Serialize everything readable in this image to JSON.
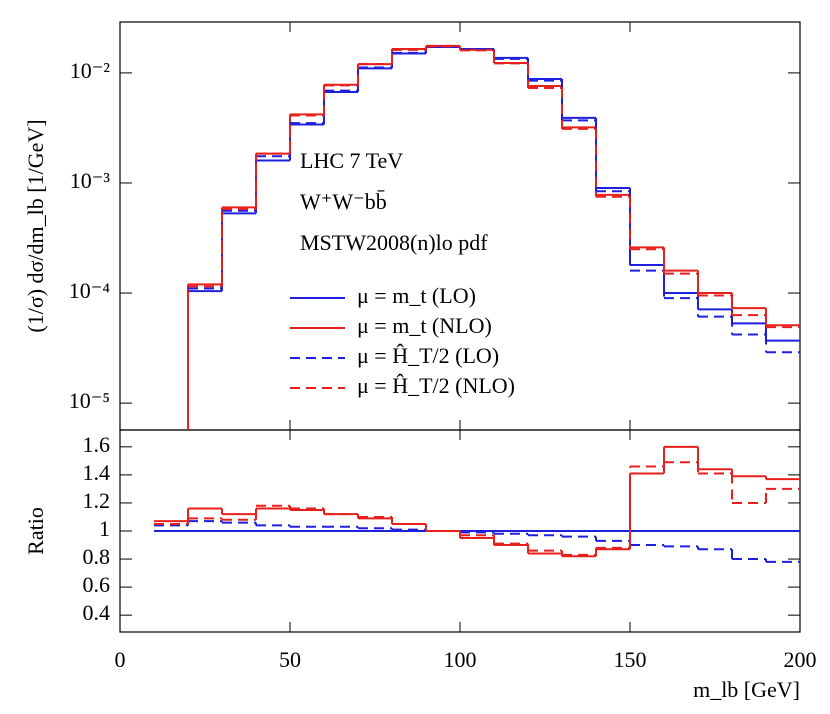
{
  "chart_data": [
    {
      "type": "histogram",
      "ylabel": "(1/σ) dσ/dm_lb [1/GeV]",
      "annotations": [
        "LHC 7 TeV",
        "W⁺W⁻bb̄",
        "MSTW2008(n)lo pdf"
      ],
      "log_y": true,
      "legend": "center",
      "xlim": [
        0,
        200
      ],
      "ylim": [
        5.7e-06,
        0.029
      ],
      "yticks": [
        {
          "value": 1e-05,
          "label": "10⁻⁵"
        },
        {
          "value": 0.0001,
          "label": "10⁻⁴"
        },
        {
          "value": 0.001,
          "label": "10⁻³"
        },
        {
          "value": 0.01,
          "label": "10⁻²"
        }
      ],
      "bins": [
        20,
        30,
        40,
        50,
        60,
        70,
        80,
        90,
        100,
        110,
        120,
        130,
        140,
        150,
        160,
        170,
        180,
        190,
        200
      ],
      "series": [
        {
          "name": "μ = m_t (LO)",
          "color": "#1f1fe0",
          "dashed": false,
          "values": [
            0.000104,
            0.00053,
            0.0016,
            0.0034,
            0.0067,
            0.011,
            0.015,
            0.0172,
            0.0165,
            0.0137,
            0.0088,
            0.0039,
            0.0009,
            0.00018,
            0.0001,
            7.1e-05,
            5.3e-05,
            3.7e-05
          ]
        },
        {
          "name": "μ = m_t (NLO)",
          "color": "#e8201c",
          "dashed": false,
          "values": [
            0.00012,
            0.0006,
            0.00185,
            0.0042,
            0.0078,
            0.012,
            0.0165,
            0.0176,
            0.0162,
            0.0123,
            0.0076,
            0.0032,
            0.00078,
            0.00026,
            0.00016,
            0.0001,
            7.3e-05,
            5.1e-05
          ]
        },
        {
          "name": "μ = Ĥ_T/2 (LO)",
          "color": "#1f1fe0",
          "dashed": true,
          "values": [
            0.00011,
            0.00056,
            0.00175,
            0.0035,
            0.0069,
            0.0112,
            0.0152,
            0.0173,
            0.0163,
            0.0134,
            0.0085,
            0.0037,
            0.00084,
            0.00016,
            9e-05,
            6.1e-05,
            4.2e-05,
            2.9e-05
          ]
        },
        {
          "name": "μ = Ĥ_T/2 (NLO)",
          "color": "#e8201c",
          "dashed": true,
          "values": [
            0.000115,
            0.00058,
            0.00185,
            0.0041,
            0.0077,
            0.012,
            0.0162,
            0.0174,
            0.016,
            0.0122,
            0.0073,
            0.0031,
            0.00075,
            0.00025,
            0.00015,
            9.5e-05,
            6.3e-05,
            4.9e-05
          ]
        }
      ]
    },
    {
      "type": "histogram",
      "ylabel": "Ratio",
      "xlabel": "m_lb [GeV]",
      "xlim": [
        0,
        200
      ],
      "xticks": [
        0,
        50,
        100,
        150,
        200
      ],
      "ylim": [
        0.28,
        1.72
      ],
      "yticks": [
        0.4,
        0.6,
        0.8,
        1,
        1.2,
        1.4,
        1.6
      ],
      "bins": [
        10,
        20,
        30,
        40,
        50,
        60,
        70,
        80,
        90,
        100,
        110,
        120,
        130,
        140,
        150,
        160,
        170,
        180,
        190,
        200
      ],
      "series": [
        {
          "color": "#1f1fe0",
          "dashed": false,
          "values": [
            1,
            1,
            1,
            1,
            1,
            1,
            1,
            1,
            1,
            1,
            1,
            1,
            1,
            1,
            1,
            1,
            1,
            1,
            1
          ]
        },
        {
          "color": "#e8201c",
          "dashed": false,
          "values": [
            1.07,
            1.16,
            1.12,
            1.16,
            1.15,
            1.12,
            1.09,
            1.05,
            1.0,
            0.95,
            0.9,
            0.84,
            0.82,
            0.87,
            1.41,
            1.6,
            1.44,
            1.39,
            1.37
          ]
        },
        {
          "color": "#1f1fe0",
          "dashed": true,
          "values": [
            1.04,
            1.07,
            1.06,
            1.04,
            1.03,
            1.03,
            1.02,
            1.01,
            1.0,
            0.99,
            0.98,
            0.97,
            0.96,
            0.93,
            0.9,
            0.89,
            0.87,
            0.8,
            0.78
          ]
        },
        {
          "color": "#e8201c",
          "dashed": true,
          "values": [
            1.05,
            1.09,
            1.08,
            1.18,
            1.16,
            1.12,
            1.1,
            1.05,
            1.0,
            0.97,
            0.91,
            0.86,
            0.83,
            0.88,
            1.46,
            1.49,
            1.41,
            1.2,
            1.3
          ]
        }
      ]
    }
  ]
}
